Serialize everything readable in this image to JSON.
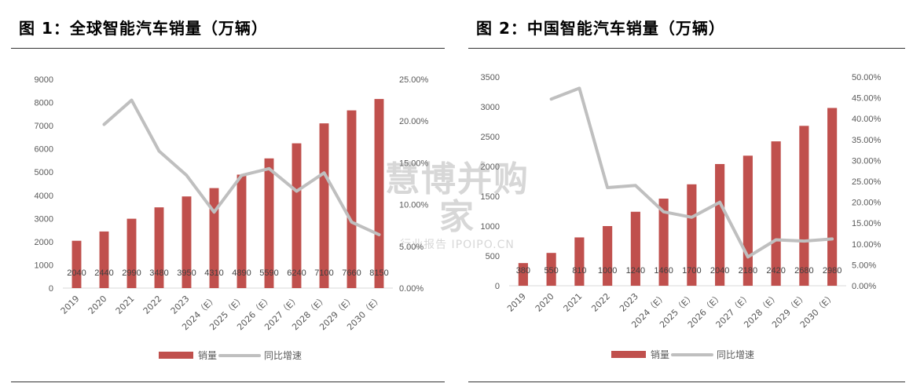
{
  "figures": [
    {
      "title": "图 1：全球智能汽车销量（万辆）"
    },
    {
      "title": "图 2：中国智能汽车销量（万辆）"
    }
  ],
  "watermark": {
    "main": "慧博并购家",
    "sub": "行业报告 IPOIPO.CN"
  },
  "colors": {
    "bar": "#C0504D",
    "line": "#BFBFBF",
    "axis": "#D9D9D9",
    "text": "#595959"
  },
  "chart_data": [
    {
      "type": "bar",
      "title": "图 1：全球智能汽车销量（万辆）",
      "categories": [
        "2019",
        "2020",
        "2021",
        "2022",
        "2023",
        "2024（E）",
        "2025（E）",
        "2026（E）",
        "2027（E）",
        "2028（E）",
        "2029（E）",
        "2030（E）"
      ],
      "series": [
        {
          "name": "销量",
          "axis": "left",
          "kind": "bar",
          "values": [
            2040,
            2440,
            2990,
            3480,
            3950,
            4310,
            4890,
            5590,
            6240,
            7100,
            7660,
            8150
          ]
        },
        {
          "name": "同比增速",
          "axis": "right",
          "kind": "line",
          "values": [
            null,
            0.196,
            0.225,
            0.164,
            0.135,
            0.091,
            0.135,
            0.143,
            0.116,
            0.138,
            0.079,
            0.064
          ]
        }
      ],
      "y_left": {
        "min": 0,
        "max": 9000,
        "ticks": [
          "0",
          "1000",
          "2000",
          "3000",
          "4000",
          "5000",
          "6000",
          "7000",
          "8000",
          "9000"
        ]
      },
      "y_right": {
        "min": 0,
        "max": 0.25,
        "ticks": [
          "0.00%",
          "5.00%",
          "10.00%",
          "15.00%",
          "20.00%",
          "25.00%"
        ]
      },
      "data_labels": [
        "2040",
        "2440",
        "2990",
        "3480",
        "3950",
        "4310",
        "4890",
        "5590",
        "6240",
        "7100",
        "7660",
        "8150"
      ],
      "legend": {
        "position": "bottom",
        "items": [
          "销量",
          "同比增速"
        ]
      },
      "grid": false
    },
    {
      "type": "bar",
      "title": "图 2：中国智能汽车销量（万辆）",
      "categories": [
        "2019",
        "2020",
        "2021",
        "2022",
        "2023",
        "2024（E）",
        "2025（E）",
        "2026（E）",
        "2027（E）",
        "2028（E）",
        "2029（E）",
        "2030（E）"
      ],
      "series": [
        {
          "name": "销量",
          "axis": "left",
          "kind": "bar",
          "values": [
            380,
            550,
            810,
            1000,
            1240,
            1460,
            1700,
            2040,
            2180,
            2420,
            2680,
            2980
          ]
        },
        {
          "name": "同比增速",
          "axis": "right",
          "kind": "line",
          "values": [
            null,
            0.447,
            0.473,
            0.235,
            0.24,
            0.177,
            0.164,
            0.2,
            0.069,
            0.11,
            0.107,
            0.112
          ]
        }
      ],
      "y_left": {
        "min": 0,
        "max": 3500,
        "ticks": [
          "0",
          "500",
          "1000",
          "1500",
          "2000",
          "2500",
          "3000",
          "3500"
        ]
      },
      "y_right": {
        "min": 0,
        "max": 0.5,
        "ticks": [
          "0.00%",
          "5.00%",
          "10.00%",
          "15.00%",
          "20.00%",
          "25.00%",
          "30.00%",
          "35.00%",
          "40.00%",
          "45.00%",
          "50.00%"
        ]
      },
      "data_labels": [
        "380",
        "550",
        "810",
        "1000",
        "1240",
        "1460",
        "1700",
        "2040",
        "2180",
        "2420",
        "2680",
        "2980"
      ],
      "legend": {
        "position": "bottom",
        "items": [
          "销量",
          "同比增速"
        ]
      },
      "grid": false
    }
  ]
}
